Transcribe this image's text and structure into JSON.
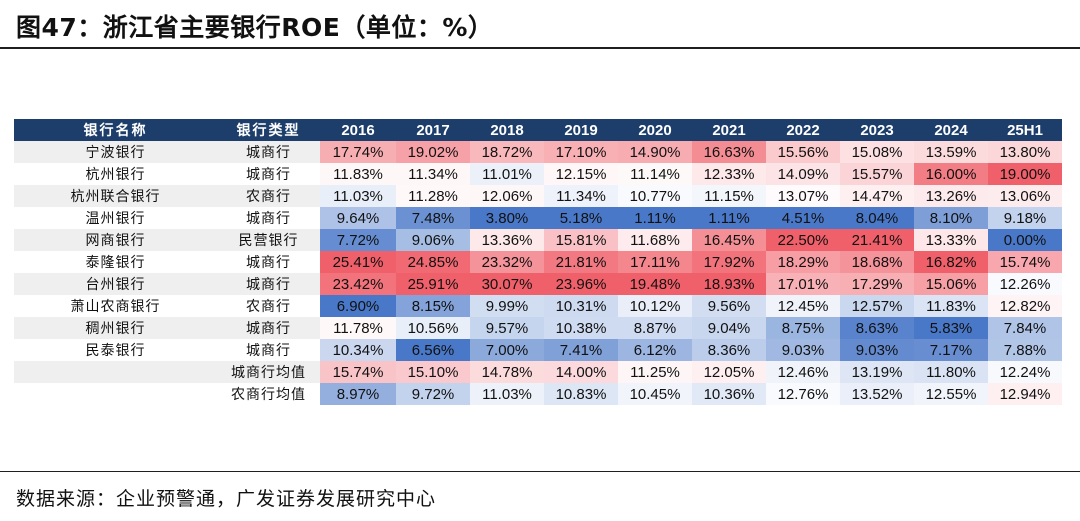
{
  "title": "图47：浙江省主要银行ROE（单位：%）",
  "source": "数据来源：企业预警通，广发证券发展研究中心",
  "chart_data": {
    "type": "table",
    "title": "图47：浙江省主要银行ROE（单位：%）",
    "headers": [
      "银行名称",
      "银行类型",
      "2016",
      "2017",
      "2018",
      "2019",
      "2020",
      "2021",
      "2022",
      "2023",
      "2024",
      "25H1"
    ],
    "rows": [
      {
        "name": "宁波银行",
        "type": "城商行",
        "values": [
          "17.74%",
          "19.02%",
          "18.72%",
          "17.10%",
          "14.90%",
          "16.63%",
          "15.56%",
          "15.08%",
          "13.59%",
          "13.80%"
        ]
      },
      {
        "name": "杭州银行",
        "type": "城商行",
        "values": [
          "11.83%",
          "11.34%",
          "11.01%",
          "12.15%",
          "11.14%",
          "12.33%",
          "14.09%",
          "15.57%",
          "16.00%",
          "19.00%"
        ]
      },
      {
        "name": "杭州联合银行",
        "type": "农商行",
        "values": [
          "11.03%",
          "11.28%",
          "12.06%",
          "11.34%",
          "10.77%",
          "11.15%",
          "13.07%",
          "14.47%",
          "13.26%",
          "13.06%"
        ]
      },
      {
        "name": "温州银行",
        "type": "城商行",
        "values": [
          "9.64%",
          "7.48%",
          "3.80%",
          "5.18%",
          "1.11%",
          "1.11%",
          "4.51%",
          "8.04%",
          "8.10%",
          "9.18%"
        ]
      },
      {
        "name": "网商银行",
        "type": "民营银行",
        "values": [
          "7.72%",
          "9.06%",
          "13.36%",
          "15.81%",
          "11.68%",
          "16.45%",
          "22.50%",
          "21.41%",
          "13.33%",
          "0.00%"
        ]
      },
      {
        "name": "泰隆银行",
        "type": "城商行",
        "values": [
          "25.41%",
          "24.85%",
          "23.32%",
          "21.81%",
          "17.11%",
          "17.92%",
          "18.29%",
          "18.68%",
          "16.82%",
          "15.74%"
        ]
      },
      {
        "name": "台州银行",
        "type": "城商行",
        "values": [
          "23.42%",
          "25.91%",
          "30.07%",
          "23.96%",
          "19.48%",
          "18.93%",
          "17.01%",
          "17.29%",
          "15.06%",
          "12.26%"
        ]
      },
      {
        "name": "萧山农商银行",
        "type": "农商行",
        "values": [
          "6.90%",
          "8.15%",
          "9.99%",
          "10.31%",
          "10.12%",
          "9.56%",
          "12.45%",
          "12.57%",
          "11.83%",
          "12.82%"
        ]
      },
      {
        "name": "稠州银行",
        "type": "城商行",
        "values": [
          "11.78%",
          "10.56%",
          "9.57%",
          "10.38%",
          "8.87%",
          "9.04%",
          "8.75%",
          "8.63%",
          "5.83%",
          "7.84%"
        ]
      },
      {
        "name": "民泰银行",
        "type": "城商行",
        "values": [
          "10.34%",
          "6.56%",
          "7.00%",
          "7.41%",
          "6.12%",
          "8.36%",
          "9.03%",
          "9.03%",
          "7.17%",
          "7.88%"
        ]
      },
      {
        "name": "",
        "type": "城商行均值",
        "values": [
          "15.74%",
          "15.10%",
          "14.78%",
          "14.00%",
          "11.25%",
          "12.05%",
          "12.46%",
          "13.19%",
          "11.80%",
          "12.24%"
        ]
      },
      {
        "name": "",
        "type": "农商行均值",
        "values": [
          "8.97%",
          "9.72%",
          "11.03%",
          "10.83%",
          "10.45%",
          "10.36%",
          "12.76%",
          "13.52%",
          "12.55%",
          "12.94%"
        ]
      }
    ],
    "heatmap": {
      "low_color": "#4a78c8",
      "mid_color": "#ffffff",
      "high_color": "#f0606a"
    }
  }
}
